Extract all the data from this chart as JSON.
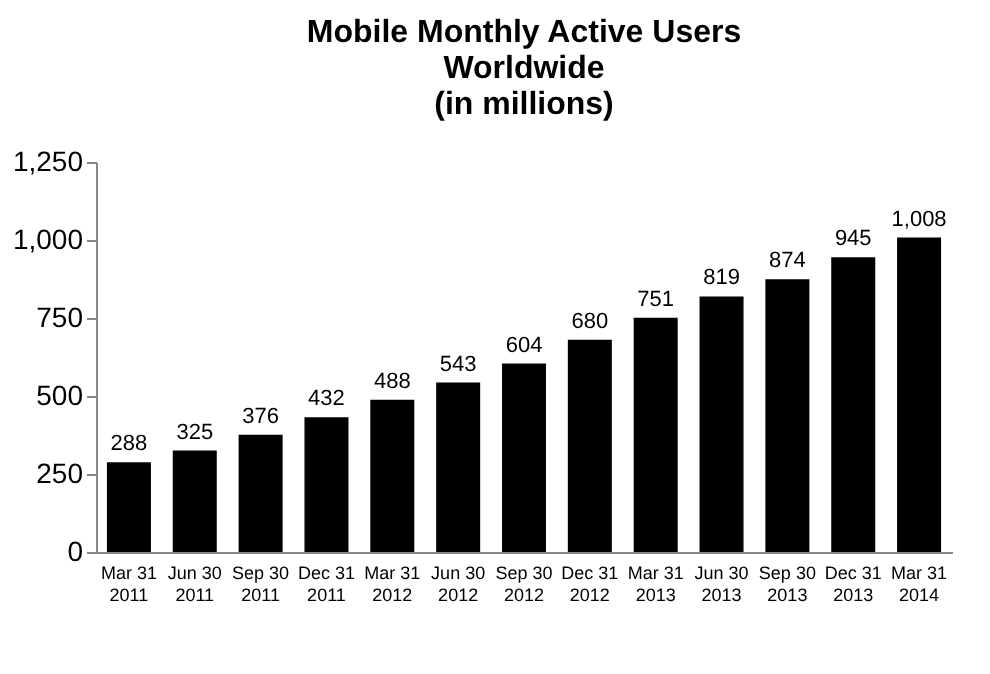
{
  "chart_data": {
    "type": "bar",
    "title": "Mobile Monthly Active Users\nWorldwide\n(in millions)",
    "categories": [
      "Mar 31\n2011",
      "Jun 30\n2011",
      "Sep 30\n2011",
      "Dec 31\n2011",
      "Mar 31\n2012",
      "Jun 30\n2012",
      "Sep 30\n2012",
      "Dec 31\n2012",
      "Mar 31\n2013",
      "Jun 30\n2013",
      "Sep 30\n2013",
      "Dec 31\n2013",
      "Mar 31\n2014"
    ],
    "values": [
      288,
      325,
      376,
      432,
      488,
      543,
      604,
      680,
      751,
      819,
      874,
      945,
      1008
    ],
    "color": "#000000",
    "ylim": [
      0,
      1250
    ],
    "yticks": [
      0,
      {
        "value": 250,
        "label": "250"
      },
      {
        "value": 500,
        "label": "500"
      },
      {
        "value": 750,
        "label": "750"
      },
      {
        "value": 1000,
        "label": "1,000"
      },
      {
        "value": 1250,
        "label": "1,250"
      }
    ],
    "value_labels": [
      "288",
      "325",
      "376",
      "432",
      "488",
      "543",
      "604",
      "680",
      "751",
      "819",
      "874",
      "945",
      "1,008"
    ],
    "grid": false
  }
}
